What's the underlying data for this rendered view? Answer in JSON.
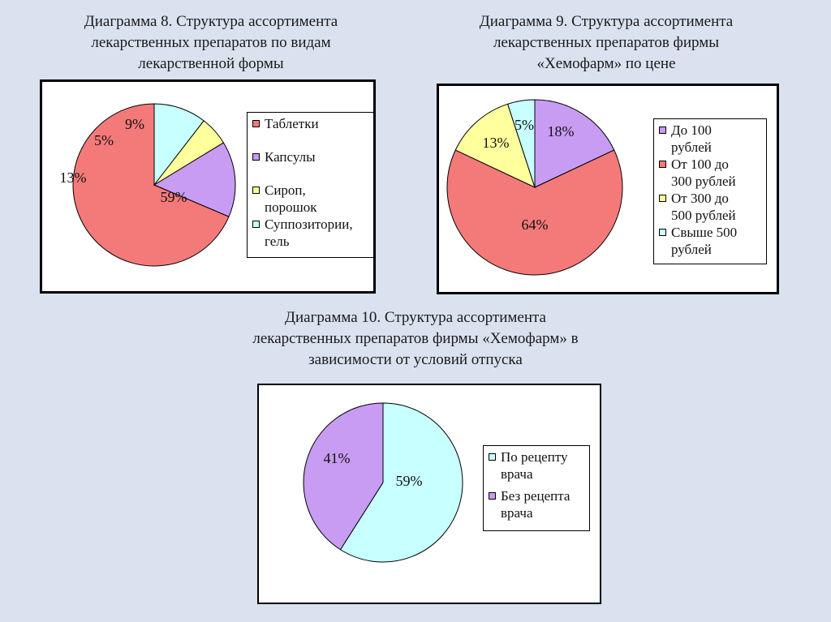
{
  "chart_data": [
    {
      "type": "pie",
      "title": "Диаграмма 8. Структура ассортимента лекарственных препаратов по видам лекарственной формы",
      "title_lines": [
        "Диаграмма 8. Структура ассортимента",
        "лекарственных препаратов по видам",
        "лекарственной формы"
      ],
      "slices": [
        {
          "label_lines": [
            "Таблетки"
          ],
          "value": 59,
          "text": "59%",
          "color": "#f47a7a"
        },
        {
          "label_lines": [
            "Капсулы"
          ],
          "value": 13,
          "text": "13%",
          "color": "#c89cf2"
        },
        {
          "label_lines": [
            "Сироп,",
            "порошок"
          ],
          "value": 5,
          "text": "5%",
          "color": "#ffff9e"
        },
        {
          "label_lines": [
            "Суппозитории,",
            "гель"
          ],
          "value": 9,
          "text": "9%",
          "color": "#c8ffff"
        }
      ]
    },
    {
      "type": "pie",
      "title": "Диаграмма 9. Структура ассортимента лекарственных препаратов фирмы «Хемофарм» по цене",
      "title_lines": [
        "Диаграмма 9. Структура ассортимента",
        "лекарственных препаратов фирмы",
        "«Хемофарм» по цене"
      ],
      "slices": [
        {
          "label_lines": [
            "До 100",
            "рублей"
          ],
          "value": 18,
          "text": "18%",
          "color": "#c89cf2"
        },
        {
          "label_lines": [
            "От 100 до",
            "300 рублей"
          ],
          "value": 64,
          "text": "64%",
          "color": "#f47a7a"
        },
        {
          "label_lines": [
            "От 300 до",
            "500 рублей"
          ],
          "value": 13,
          "text": "13%",
          "color": "#ffff9e"
        },
        {
          "label_lines": [
            "Свыше 500",
            "рублей"
          ],
          "value": 5,
          "text": "5%",
          "color": "#c8ffff"
        }
      ]
    },
    {
      "type": "pie",
      "title": "Диаграмма 10. Структура ассортимента лекарственных препаратов фирмы «Хемофарм» в зависимости от условий отпуска",
      "title_lines": [
        "Диаграмма 10. Структура ассортимента",
        "лекарственных препаратов фирмы «Хемофарм» в",
        "зависимости от условий отпуска"
      ],
      "slices": [
        {
          "label_lines": [
            "По рецепту",
            "врача"
          ],
          "value": 59,
          "text": "59%",
          "color": "#c8ffff"
        },
        {
          "label_lines": [
            "Без рецепта",
            "врача"
          ],
          "value": 41,
          "text": "41%",
          "color": "#c89cf2"
        }
      ]
    }
  ]
}
